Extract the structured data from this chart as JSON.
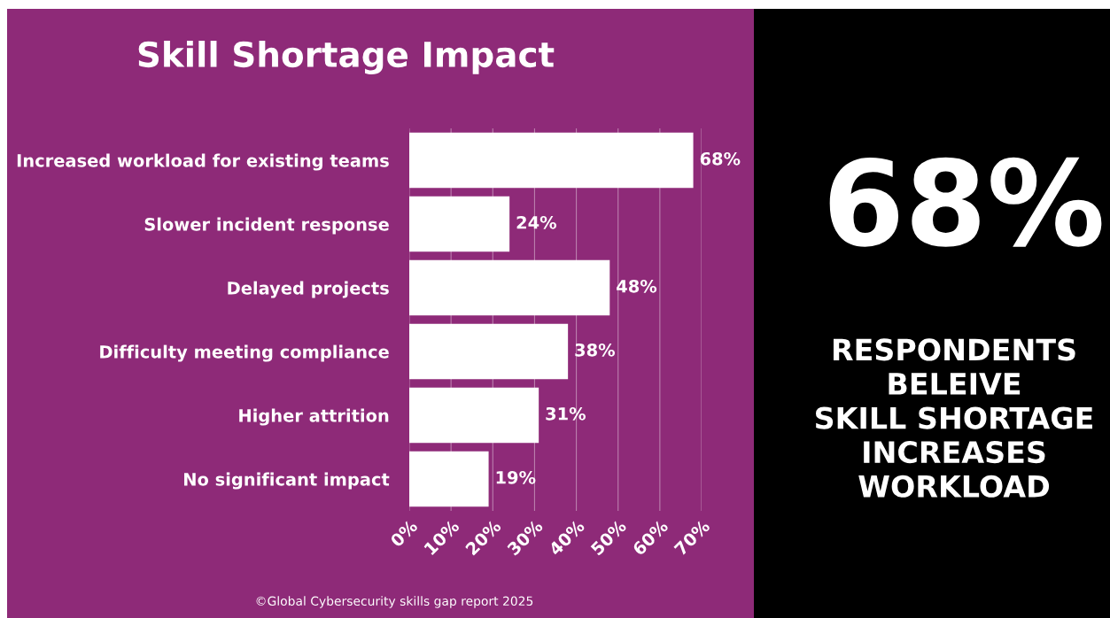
{
  "chart_data": {
    "type": "bar",
    "orientation": "horizontal",
    "title": "Skill Shortage Impact",
    "categories": [
      "Increased workload for existing teams",
      "Slower incident response",
      "Delayed projects",
      "Difficulty meeting compliance",
      "Higher attrition",
      "No significant impact"
    ],
    "values": [
      68,
      24,
      48,
      38,
      31,
      19
    ],
    "value_labels": [
      "68%",
      "24%",
      "48%",
      "38%",
      "31%",
      "19%"
    ],
    "color": "#ffffff",
    "xlim": [
      0,
      70
    ],
    "xticks": [
      {
        "value": 0,
        "label": "0%"
      },
      {
        "value": 10,
        "label": "10%"
      },
      {
        "value": 20,
        "label": "20%"
      },
      {
        "value": 30,
        "label": "30%"
      },
      {
        "value": 40,
        "label": "40%"
      },
      {
        "value": 50,
        "label": "50%"
      },
      {
        "value": 60,
        "label": "60%"
      },
      {
        "value": 70,
        "label": "70%"
      }
    ],
    "grid": "x",
    "annotations": [
      "68%",
      "RESPONDENTS\nBELEIVE\nSKILL SHORTAGE\nINCREASES\nWORKLOAD",
      "©Global Cybersecurity skills gap report 2025"
    ]
  }
}
